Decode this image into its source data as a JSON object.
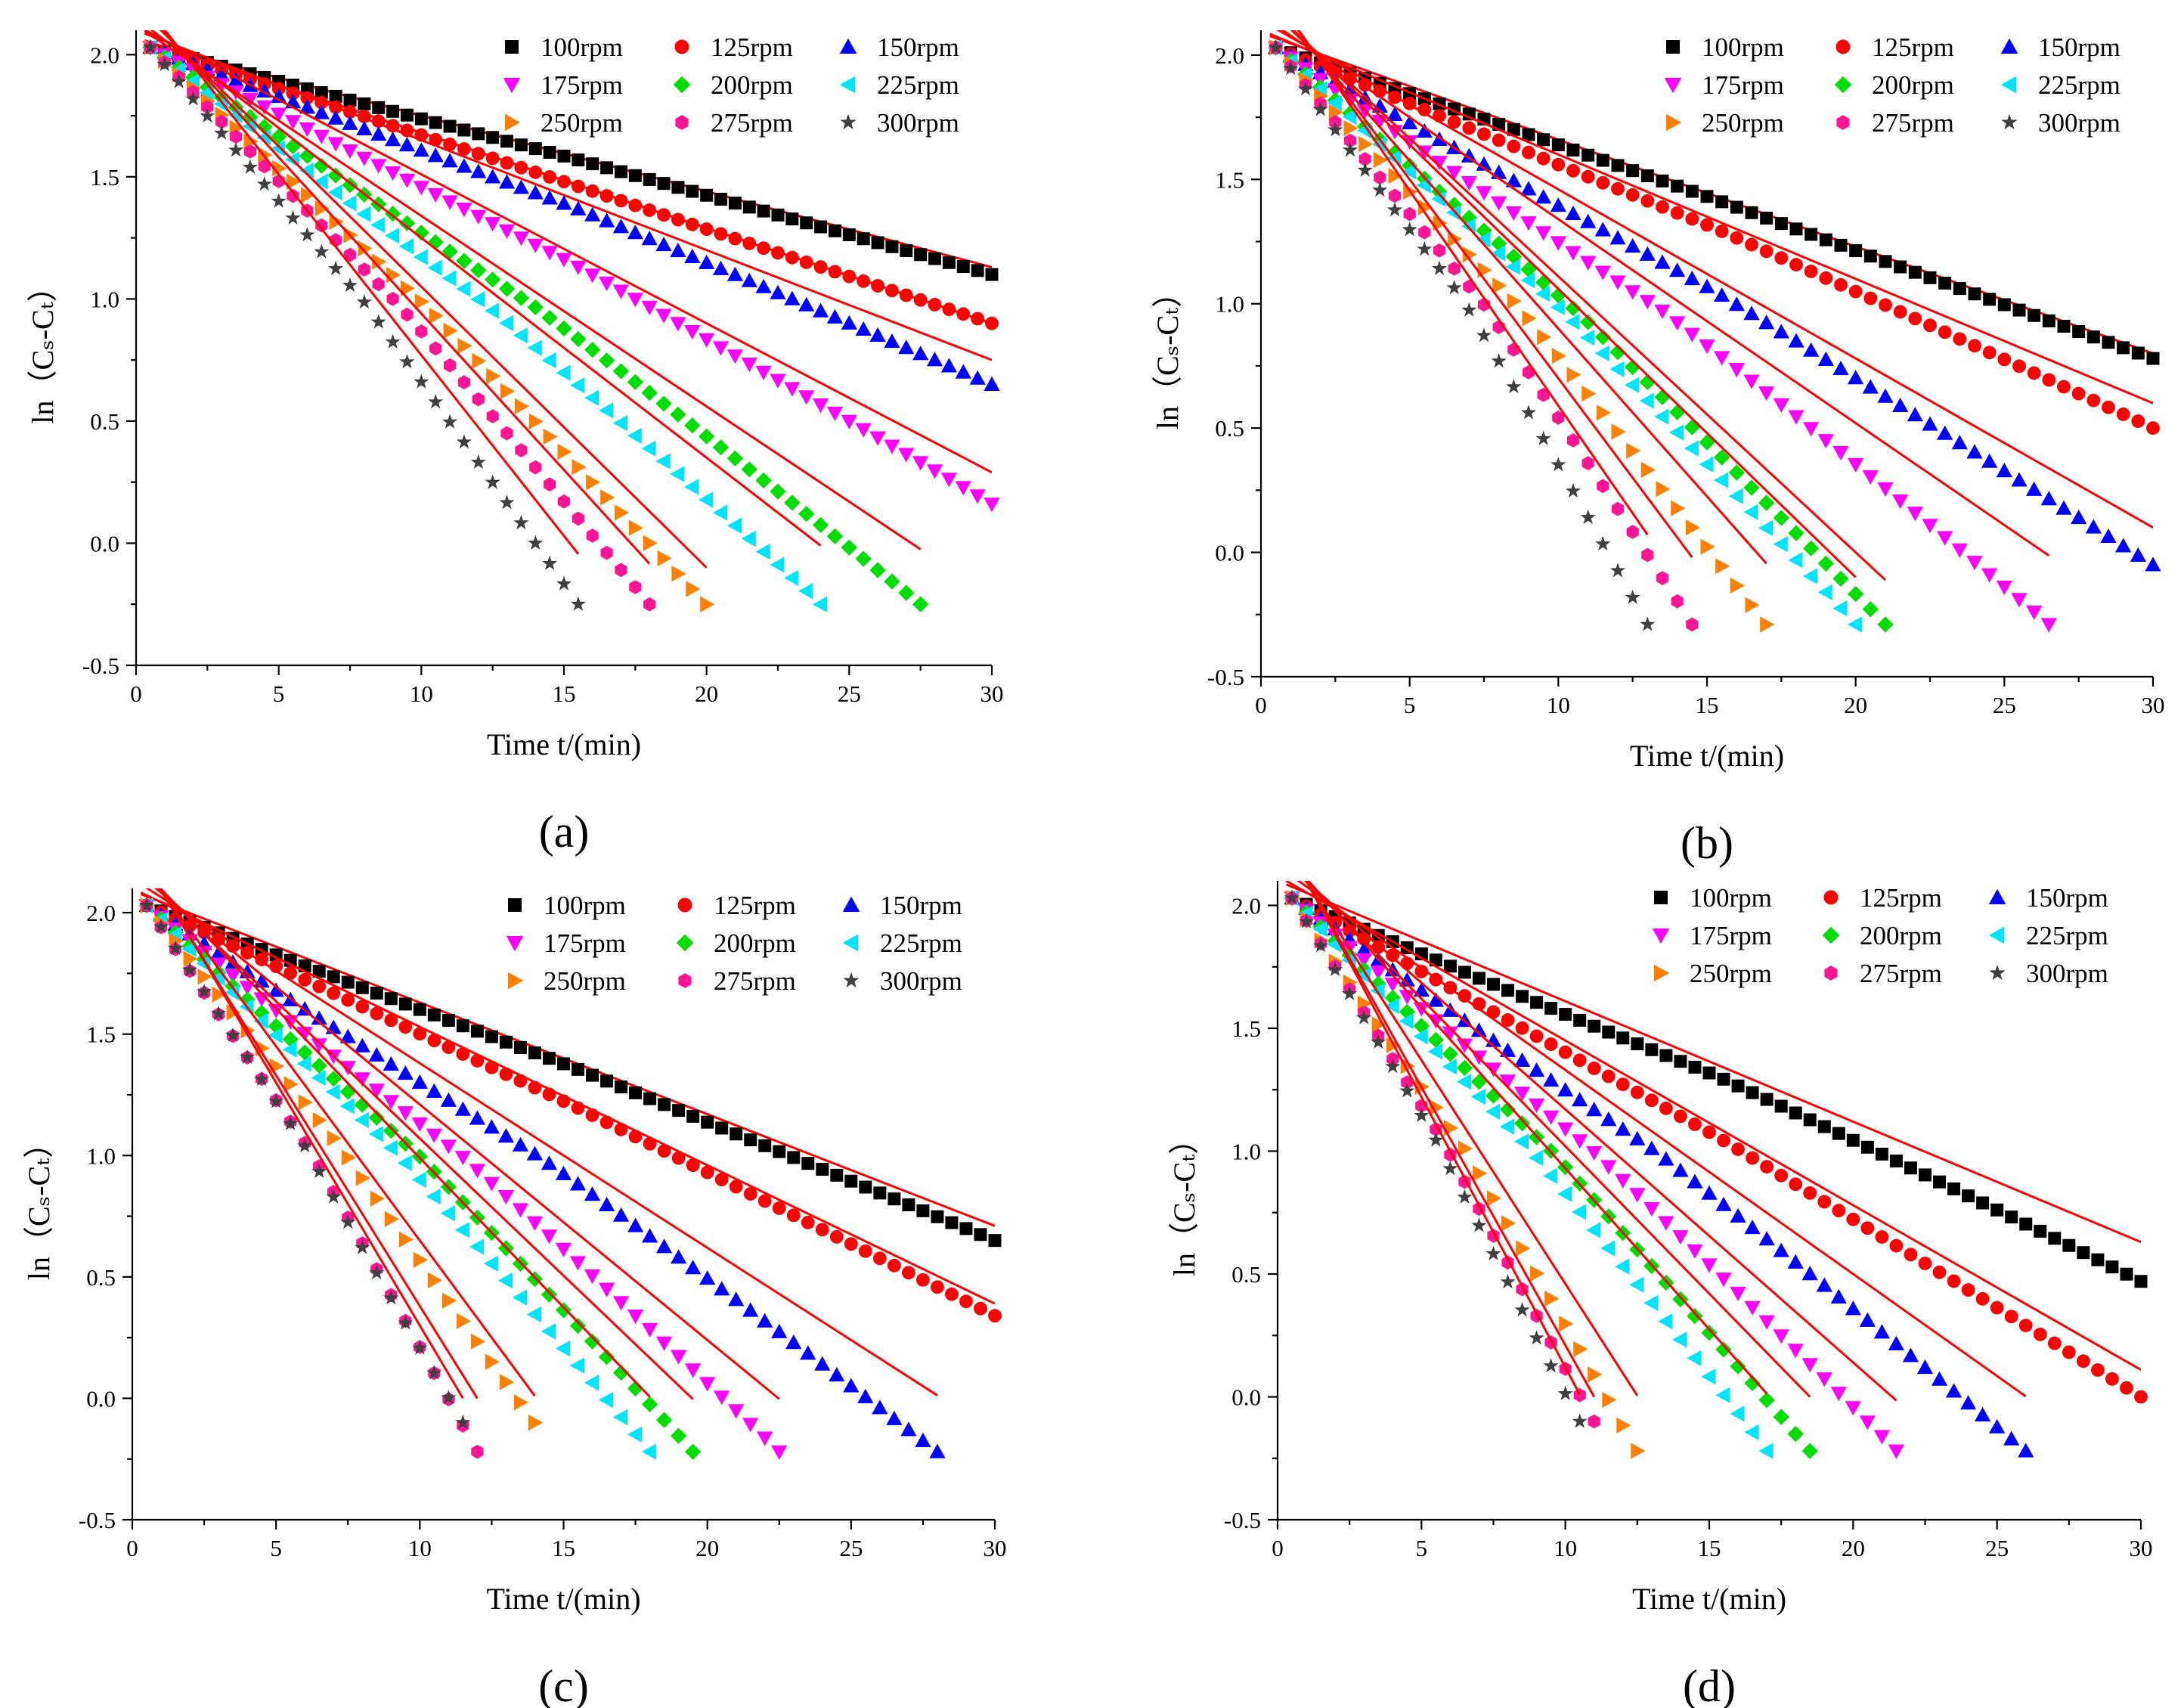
{
  "chart_data": [
    {
      "type": "scatter",
      "panel_label": "(a)",
      "xlabel": "Time t/(min)",
      "ylabel": "ln（Cₛ-Cₜ）",
      "xlim": [
        0,
        30
      ],
      "ylim": [
        -0.5,
        2.1
      ],
      "x_ticks": [
        0,
        5,
        10,
        15,
        20,
        25,
        30
      ],
      "y_ticks": [
        -0.5,
        0.0,
        0.5,
        1.0,
        1.5,
        2.0
      ],
      "legend_position": "top-right",
      "series": [
        {
          "name": "100rpm",
          "color": "#000000",
          "marker": "square",
          "x_end": 30.0,
          "y_end": 1.1,
          "fit": [
            2.06,
            0.031
          ]
        },
        {
          "name": "125rpm",
          "color": "#ff0000",
          "marker": "circle",
          "x_end": 30.0,
          "y_end": 0.9,
          "fit": [
            2.07,
            0.039
          ]
        },
        {
          "name": "150rpm",
          "color": "#0000ff",
          "marker": "triangle-up",
          "x_end": 30.0,
          "y_end": 0.65,
          "fit": [
            2.1,
            0.045
          ]
        },
        {
          "name": "175rpm",
          "color": "#ff00ff",
          "marker": "triangle-down",
          "x_end": 30.0,
          "y_end": 0.16,
          "fit": [
            2.12,
            0.061
          ]
        },
        {
          "name": "200rpm",
          "color": "#00dd00",
          "marker": "diamond",
          "x_end": 27.5,
          "y_end": -0.25,
          "fit": [
            2.12,
            0.078
          ]
        },
        {
          "name": "225rpm",
          "color": "#00e5ff",
          "marker": "triangle-left",
          "x_end": 24.0,
          "y_end": -0.25,
          "fit": [
            2.15,
            0.09
          ]
        },
        {
          "name": "250rpm",
          "color": "#ff8000",
          "marker": "triangle-right",
          "x_end": 20.0,
          "y_end": -0.25,
          "fit": [
            2.2,
            0.115
          ]
        },
        {
          "name": "275rpm",
          "color": "#ff1493",
          "marker": "hexagon",
          "x_end": 18.0,
          "y_end": -0.25,
          "fit": [
            2.22,
            0.128
          ]
        },
        {
          "name": "300rpm",
          "color": "#404040",
          "marker": "star",
          "x_end": 15.5,
          "y_end": -0.25,
          "fit": [
            2.25,
            0.148
          ]
        }
      ]
    },
    {
      "type": "scatter",
      "panel_label": "(b)",
      "xlabel": "Time t/(min)",
      "ylabel": "ln（Cₛ-Cₜ）",
      "xlim": [
        0,
        30
      ],
      "ylim": [
        -0.5,
        2.1
      ],
      "x_ticks": [
        0,
        5,
        10,
        15,
        20,
        25,
        30
      ],
      "y_ticks": [
        -0.5,
        0.0,
        0.5,
        1.0,
        1.5,
        2.0
      ],
      "legend_position": "top-right",
      "series": [
        {
          "name": "100rpm",
          "color": "#000000",
          "marker": "square",
          "x_end": 30.0,
          "y_end": 0.78,
          "fit": [
            2.09,
            0.043
          ]
        },
        {
          "name": "125rpm",
          "color": "#ff0000",
          "marker": "circle",
          "x_end": 30.0,
          "y_end": 0.5,
          "fit": [
            2.1,
            0.05
          ]
        },
        {
          "name": "150rpm",
          "color": "#0000ff",
          "marker": "triangle-up",
          "x_end": 30.0,
          "y_end": -0.05,
          "fit": [
            2.14,
            0.068
          ]
        },
        {
          "name": "175rpm",
          "color": "#ff00ff",
          "marker": "triangle-down",
          "x_end": 26.5,
          "y_end": -0.29,
          "fit": [
            2.16,
            0.082
          ]
        },
        {
          "name": "200rpm",
          "color": "#00dd00",
          "marker": "diamond",
          "x_end": 21.0,
          "y_end": -0.29,
          "fit": [
            2.22,
            0.111
          ]
        },
        {
          "name": "225rpm",
          "color": "#00e5ff",
          "marker": "triangle-left",
          "x_end": 20.0,
          "y_end": -0.29,
          "fit": [
            2.22,
            0.116
          ]
        },
        {
          "name": "250rpm",
          "color": "#ff8000",
          "marker": "triangle-right",
          "x_end": 17.0,
          "y_end": -0.29,
          "fit": [
            2.25,
            0.135
          ]
        },
        {
          "name": "275rpm",
          "color": "#ff1493",
          "marker": "hexagon",
          "x_end": 14.5,
          "y_end": -0.29,
          "fit": [
            2.3,
            0.16
          ]
        },
        {
          "name": "300rpm",
          "color": "#404040",
          "marker": "star",
          "x_end": 13.0,
          "y_end": -0.29,
          "fit": [
            2.32,
            0.173
          ]
        }
      ]
    },
    {
      "type": "scatter",
      "panel_label": "(c)",
      "xlabel": "Time t/(min)",
      "ylabel": "ln（Cₛ-Cₜ）",
      "xlim": [
        0,
        30
      ],
      "ylim": [
        -0.5,
        2.1
      ],
      "x_ticks": [
        0,
        5,
        10,
        15,
        20,
        25,
        30
      ],
      "y_ticks": [
        -0.5,
        0.0,
        0.5,
        1.0,
        1.5,
        2.0
      ],
      "legend_position": "top-right",
      "series": [
        {
          "name": "100rpm",
          "color": "#000000",
          "marker": "square",
          "x_end": 30.0,
          "y_end": 0.65,
          "fit": [
            2.09,
            0.046
          ]
        },
        {
          "name": "125rpm",
          "color": "#ff0000",
          "marker": "circle",
          "x_end": 30.0,
          "y_end": 0.34,
          "fit": [
            2.1,
            0.057
          ]
        },
        {
          "name": "150rpm",
          "color": "#0000ff",
          "marker": "triangle-up",
          "x_end": 28.0,
          "y_end": -0.22,
          "fit": [
            2.14,
            0.076
          ]
        },
        {
          "name": "175rpm",
          "color": "#ff00ff",
          "marker": "triangle-down",
          "x_end": 22.5,
          "y_end": -0.22,
          "fit": [
            2.18,
            0.097
          ]
        },
        {
          "name": "200rpm",
          "color": "#00dd00",
          "marker": "diamond",
          "x_end": 19.5,
          "y_end": -0.22,
          "fit": [
            2.2,
            0.113
          ]
        },
        {
          "name": "225rpm",
          "color": "#00e5ff",
          "marker": "triangle-left",
          "x_end": 18.0,
          "y_end": -0.22,
          "fit": [
            2.22,
            0.123
          ]
        },
        {
          "name": "250rpm",
          "color": "#ff8000",
          "marker": "triangle-right",
          "x_end": 14.0,
          "y_end": -0.1,
          "fit": [
            2.25,
            0.16
          ]
        },
        {
          "name": "275rpm",
          "color": "#ff1493",
          "marker": "hexagon",
          "x_end": 12.0,
          "y_end": -0.22,
          "fit": [
            2.28,
            0.19
          ]
        },
        {
          "name": "300rpm",
          "color": "#404040",
          "marker": "star",
          "x_end": 11.5,
          "y_end": -0.1,
          "fit": [
            2.3,
            0.2
          ]
        }
      ]
    },
    {
      "type": "scatter",
      "panel_label": "(d)",
      "xlabel": "Time t/(min)",
      "ylabel": "ln（Cₛ-Cₜ）",
      "xlim": [
        0,
        30
      ],
      "ylim": [
        -0.5,
        2.1
      ],
      "x_ticks": [
        0,
        5,
        10,
        15,
        20,
        25,
        30
      ],
      "y_ticks": [
        -0.5,
        0.0,
        0.5,
        1.0,
        1.5,
        2.0
      ],
      "legend_position": "top-right",
      "series": [
        {
          "name": "100rpm",
          "color": "#000000",
          "marker": "square",
          "x_end": 30.0,
          "y_end": 0.47,
          "fit": [
            2.1,
            0.049
          ]
        },
        {
          "name": "125rpm",
          "color": "#ff0000",
          "marker": "circle",
          "x_end": 30.0,
          "y_end": 0.0,
          "fit": [
            2.12,
            0.067
          ]
        },
        {
          "name": "150rpm",
          "color": "#0000ff",
          "marker": "triangle-up",
          "x_end": 26.0,
          "y_end": -0.22,
          "fit": [
            2.16,
            0.083
          ]
        },
        {
          "name": "175rpm",
          "color": "#ff00ff",
          "marker": "triangle-down",
          "x_end": 21.5,
          "y_end": -0.22,
          "fit": [
            2.2,
            0.103
          ]
        },
        {
          "name": "200rpm",
          "color": "#00dd00",
          "marker": "diamond",
          "x_end": 18.5,
          "y_end": -0.22,
          "fit": [
            2.22,
            0.12
          ]
        },
        {
          "name": "225rpm",
          "color": "#00e5ff",
          "marker": "triangle-left",
          "x_end": 17.0,
          "y_end": -0.22,
          "fit": [
            2.24,
            0.131
          ]
        },
        {
          "name": "250rpm",
          "color": "#ff8000",
          "marker": "triangle-right",
          "x_end": 12.5,
          "y_end": -0.22,
          "fit": [
            2.28,
            0.182
          ]
        },
        {
          "name": "275rpm",
          "color": "#ff1493",
          "marker": "hexagon",
          "x_end": 11.0,
          "y_end": -0.1,
          "fit": [
            2.31,
            0.21
          ]
        },
        {
          "name": "300rpm",
          "color": "#404040",
          "marker": "star",
          "x_end": 10.5,
          "y_end": -0.1,
          "fit": [
            2.32,
            0.22
          ]
        }
      ]
    }
  ]
}
